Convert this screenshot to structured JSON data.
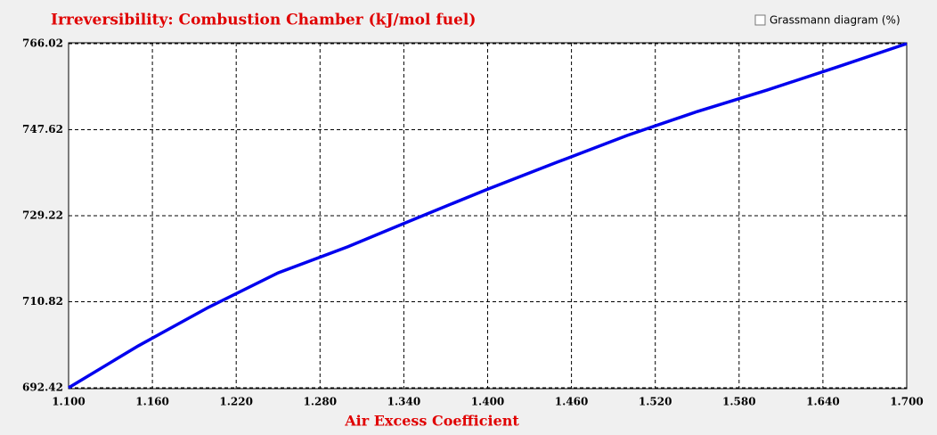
{
  "chart_data": {
    "type": "line",
    "title": "Irreversibility: Combustion Chamber (kJ/mol fuel)",
    "x_label": "Air Excess Coefficient",
    "checkbox_label": "Grassmann diagram (%)",
    "x": [
      1.1,
      1.15,
      1.2,
      1.25,
      1.3,
      1.35,
      1.4,
      1.45,
      1.5,
      1.55,
      1.6,
      1.65,
      1.7
    ],
    "series": [
      {
        "color": "#0000ee",
        "values": [
          692.42,
          701.4,
          709.6,
          717.0,
          722.6,
          728.8,
          734.9,
          740.7,
          746.4,
          751.5,
          756.1,
          761.0,
          766.02
        ]
      }
    ],
    "xlim": [
      1.1,
      1.7
    ],
    "xticks": [
      {
        "value": 1.1,
        "label": "1.100"
      },
      {
        "value": 1.16,
        "label": "1.160"
      },
      {
        "value": 1.22,
        "label": "1.220"
      },
      {
        "value": 1.28,
        "label": "1.280"
      },
      {
        "value": 1.34,
        "label": "1.340"
      },
      {
        "value": 1.4,
        "label": "1.400"
      },
      {
        "value": 1.46,
        "label": "1.460"
      },
      {
        "value": 1.52,
        "label": "1.520"
      },
      {
        "value": 1.58,
        "label": "1.580"
      },
      {
        "value": 1.64,
        "label": "1.640"
      },
      {
        "value": 1.7,
        "label": "1.700"
      }
    ],
    "ylim": [
      692.42,
      766.02
    ],
    "yticks": [
      692.42,
      710.82,
      729.22,
      747.62,
      766.02
    ],
    "grid": true
  }
}
